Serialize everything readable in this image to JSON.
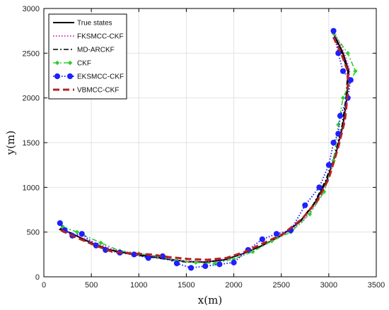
{
  "chart_data": {
    "type": "line",
    "title": "",
    "xlabel": "x(m)",
    "ylabel": "y(m)",
    "xlim": [
      0,
      3500
    ],
    "ylim": [
      0,
      3000
    ],
    "x_ticks": [
      "0",
      "500",
      "1000",
      "1500",
      "2000",
      "2500",
      "3000",
      "3500"
    ],
    "y_ticks": [
      "0",
      "500",
      "1000",
      "1500",
      "2000",
      "2500",
      "3000"
    ],
    "x_tick_values": [
      0,
      500,
      1000,
      1500,
      2000,
      2500,
      3000,
      3500
    ],
    "y_tick_values": [
      0,
      500,
      1000,
      1500,
      2000,
      2500,
      3000
    ],
    "grid": true,
    "legend_position": "top-left",
    "series": [
      {
        "name": "True states",
        "color": "#000000",
        "style": "solid",
        "marker": "none",
        "points": [
          [
            170,
            540
          ],
          [
            300,
            480
          ],
          [
            500,
            380
          ],
          [
            700,
            300
          ],
          [
            900,
            260
          ],
          [
            1100,
            230
          ],
          [
            1300,
            200
          ],
          [
            1500,
            170
          ],
          [
            1700,
            165
          ],
          [
            1900,
            190
          ],
          [
            2100,
            260
          ],
          [
            2300,
            350
          ],
          [
            2500,
            460
          ],
          [
            2700,
            620
          ],
          [
            2850,
            820
          ],
          [
            2980,
            1080
          ],
          [
            3080,
            1400
          ],
          [
            3150,
            1700
          ],
          [
            3190,
            2000
          ],
          [
            3210,
            2300
          ],
          [
            3150,
            2500
          ],
          [
            3060,
            2700
          ]
        ]
      },
      {
        "name": "FKSMCC-CKF",
        "color": "#cc33cc",
        "style": "dotted",
        "marker": "none",
        "points": [
          [
            180,
            550
          ],
          [
            320,
            470
          ],
          [
            520,
            390
          ],
          [
            720,
            310
          ],
          [
            920,
            270
          ],
          [
            1120,
            240
          ],
          [
            1320,
            200
          ],
          [
            1520,
            175
          ],
          [
            1720,
            170
          ],
          [
            1920,
            200
          ],
          [
            2120,
            270
          ],
          [
            2320,
            360
          ],
          [
            2520,
            470
          ],
          [
            2720,
            610
          ],
          [
            2870,
            830
          ],
          [
            2990,
            1070
          ],
          [
            3090,
            1420
          ],
          [
            3160,
            1720
          ],
          [
            3200,
            2010
          ],
          [
            3220,
            2310
          ],
          [
            3160,
            2510
          ],
          [
            3070,
            2710
          ]
        ]
      },
      {
        "name": "MD-ARCKF",
        "color": "#000000",
        "style": "dashdot",
        "marker": "none",
        "points": [
          [
            160,
            530
          ],
          [
            290,
            490
          ],
          [
            490,
            370
          ],
          [
            690,
            295
          ],
          [
            890,
            255
          ],
          [
            1090,
            225
          ],
          [
            1290,
            195
          ],
          [
            1490,
            165
          ],
          [
            1690,
            160
          ],
          [
            1890,
            185
          ],
          [
            2090,
            255
          ],
          [
            2290,
            345
          ],
          [
            2490,
            455
          ],
          [
            2690,
            615
          ],
          [
            2840,
            815
          ],
          [
            2970,
            1085
          ],
          [
            3070,
            1395
          ],
          [
            3140,
            1695
          ],
          [
            3180,
            1995
          ],
          [
            3200,
            2295
          ],
          [
            3140,
            2495
          ],
          [
            3050,
            2695
          ]
        ]
      },
      {
        "name": "CKF",
        "color": "#33cc33",
        "style": "dashdot",
        "marker": "diamond",
        "points": [
          [
            200,
            560
          ],
          [
            350,
            500
          ],
          [
            600,
            380
          ],
          [
            800,
            290
          ],
          [
            1000,
            260
          ],
          [
            1200,
            230
          ],
          [
            1400,
            180
          ],
          [
            1600,
            160
          ],
          [
            1800,
            150
          ],
          [
            2000,
            200
          ],
          [
            2200,
            280
          ],
          [
            2400,
            400
          ],
          [
            2600,
            500
          ],
          [
            2800,
            700
          ],
          [
            2950,
            950
          ],
          [
            3050,
            1300
          ],
          [
            3100,
            1700
          ],
          [
            3150,
            2000
          ],
          [
            3280,
            2300
          ],
          [
            3200,
            2500
          ],
          [
            3050,
            2720
          ]
        ]
      },
      {
        "name": "EKSMCC-CKF",
        "color": "#1f1fff",
        "style": "dotted",
        "marker": "circle",
        "points": [
          [
            170,
            600
          ],
          [
            220,
            520
          ],
          [
            300,
            460
          ],
          [
            400,
            480
          ],
          [
            550,
            350
          ],
          [
            650,
            300
          ],
          [
            800,
            270
          ],
          [
            950,
            250
          ],
          [
            1100,
            210
          ],
          [
            1250,
            230
          ],
          [
            1400,
            150
          ],
          [
            1550,
            100
          ],
          [
            1700,
            120
          ],
          [
            1850,
            140
          ],
          [
            2000,
            160
          ],
          [
            2150,
            300
          ],
          [
            2300,
            420
          ],
          [
            2450,
            480
          ],
          [
            2600,
            520
          ],
          [
            2750,
            800
          ],
          [
            2900,
            1000
          ],
          [
            3000,
            1250
          ],
          [
            3050,
            1500
          ],
          [
            3100,
            1600
          ],
          [
            3120,
            1800
          ],
          [
            3200,
            2000
          ],
          [
            3230,
            2200
          ],
          [
            3150,
            2300
          ],
          [
            3100,
            2500
          ],
          [
            3050,
            2750
          ]
        ]
      },
      {
        "name": "VBMCC-CKF",
        "color": "#b22222",
        "style": "dashed",
        "marker": "none",
        "points": [
          [
            180,
            520
          ],
          [
            320,
            450
          ],
          [
            520,
            360
          ],
          [
            720,
            280
          ],
          [
            920,
            260
          ],
          [
            1120,
            250
          ],
          [
            1320,
            220
          ],
          [
            1520,
            200
          ],
          [
            1720,
            190
          ],
          [
            1920,
            210
          ],
          [
            2120,
            280
          ],
          [
            2320,
            380
          ],
          [
            2520,
            480
          ],
          [
            2720,
            650
          ],
          [
            2880,
            850
          ],
          [
            3000,
            1100
          ],
          [
            3100,
            1450
          ],
          [
            3170,
            1750
          ],
          [
            3200,
            2050
          ],
          [
            3200,
            2300
          ],
          [
            3130,
            2500
          ],
          [
            3040,
            2700
          ]
        ]
      }
    ]
  }
}
